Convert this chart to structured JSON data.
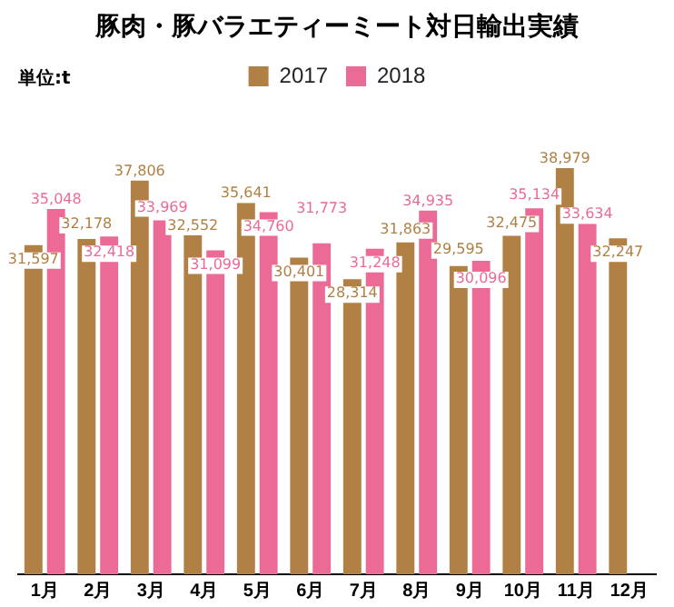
{
  "chart_data": {
    "type": "bar",
    "title": "豚肉・豚バラエティーミート対日輸出実績",
    "annotations": [
      "単位:t"
    ],
    "categories": [
      "1月",
      "2月",
      "3月",
      "4月",
      "5月",
      "6月",
      "7月",
      "8月",
      "9月",
      "10月",
      "11月",
      "12月"
    ],
    "series": [
      {
        "name": "2017",
        "color": "#b08044",
        "values": [
          31597,
          32178,
          37806,
          32552,
          35641,
          30401,
          28314,
          31863,
          29595,
          32475,
          38979,
          32247
        ],
        "value_labels": [
          "31,597",
          "32,178",
          "37,806",
          "32,552",
          "35,641",
          "30,401",
          "28,314",
          "31,863",
          "29,595",
          "32,475",
          "38,979",
          "32,247"
        ]
      },
      {
        "name": "2018",
        "color": "#ec6b96",
        "values": [
          35048,
          32418,
          33969,
          31099,
          34760,
          31773,
          31248,
          34935,
          30096,
          35134,
          33634,
          null
        ],
        "value_labels": [
          "35,048",
          "32,418",
          "33,969",
          "31,099",
          "34,760",
          "31,773",
          "31,248",
          "34,935",
          "30,096",
          "35,134",
          "33,634",
          null
        ]
      }
    ],
    "data_labels": true,
    "legend": "top",
    "grid": false
  }
}
